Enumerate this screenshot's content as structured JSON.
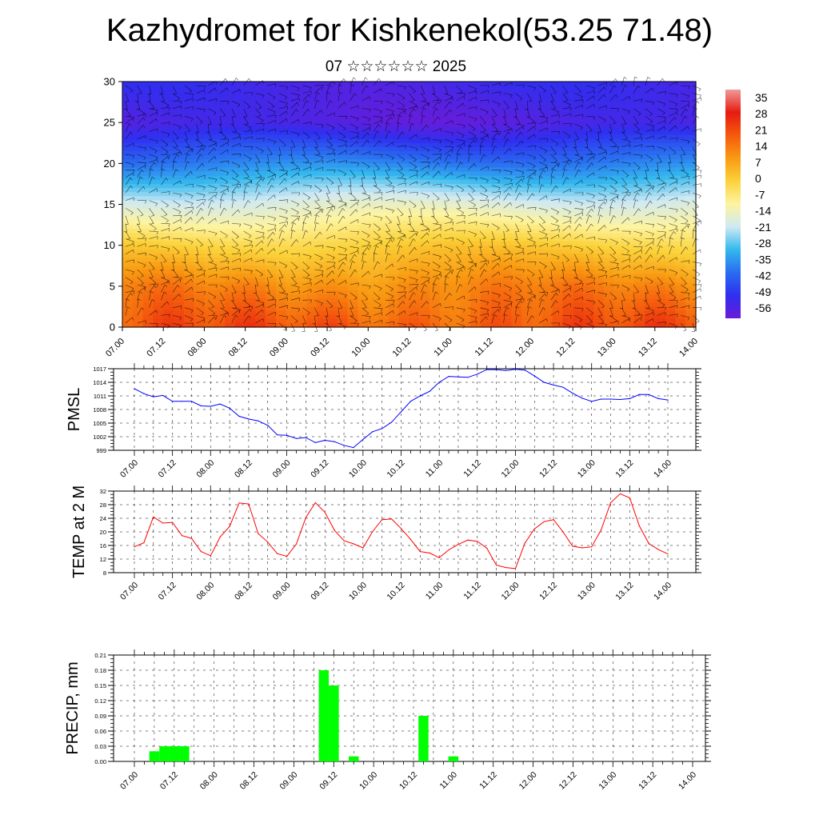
{
  "header": {
    "title": "Kazhydromet for Kishkenekol(53.25 71.48)",
    "subtitle": "07 ☆☆☆☆☆☆ 2025"
  },
  "colors": {
    "pmsl_line": "#0000ff",
    "temp_line": "#ff0000",
    "precip_bar": "#00ff00",
    "cross_section_palette": [
      "#6a1bd9",
      "#2f2ff0",
      "#2a6cf0",
      "#33b8ee",
      "#cfe9f4",
      "#fdf4a0",
      "#fbd23a",
      "#f99a12",
      "#f55a0e",
      "#e61b10",
      "#ef9a98"
    ]
  },
  "time_axis_labels": [
    "07.00",
    "07.12",
    "08.00",
    "08.12",
    "09.00",
    "09.12",
    "10.00",
    "10.12",
    "11.00",
    "11.12",
    "12.00",
    "12.12",
    "13.00",
    "13.12",
    "14.00"
  ],
  "chart_data": [
    {
      "id": "cross_section",
      "type": "heatmap",
      "description_layers": "temperature vs height with wind barbs",
      "ylim": [
        0,
        30
      ],
      "yticks": [
        0,
        5,
        10,
        15,
        20,
        25,
        30
      ],
      "profile_levels": [
        0,
        5,
        10,
        15,
        20,
        25,
        30
      ],
      "profile_values": [
        30,
        21,
        7,
        -12,
        -35,
        -56,
        -52
      ],
      "colorbar": {
        "labels": [
          "35",
          "28",
          "21",
          "14",
          "7",
          "0",
          "-7",
          "-14",
          "-21",
          "-28",
          "-35",
          "-42",
          "-49",
          "-56"
        ],
        "range": [
          -60,
          40
        ]
      }
    },
    {
      "id": "pmsl",
      "type": "line",
      "ylabel": "PMSL",
      "ylim": [
        999,
        1017
      ],
      "yticks": [
        "999",
        "1002",
        "1005",
        "1008",
        "1011",
        "1014",
        "1017"
      ],
      "x_hours": [
        0,
        3,
        6,
        9,
        12,
        15,
        18,
        21,
        24,
        27,
        30,
        33,
        36,
        39,
        42,
        45,
        48,
        51,
        54,
        57,
        60,
        63,
        66,
        69,
        72,
        75,
        78,
        81,
        84,
        87,
        90,
        93,
        96,
        99,
        102,
        105,
        108,
        111,
        114,
        117,
        120,
        123,
        126,
        129,
        132,
        135,
        138,
        141,
        144,
        147,
        150,
        153,
        156,
        159,
        162,
        165,
        168
      ],
      "values": [
        1012.6,
        1011.5,
        1010.8,
        1011.1,
        1009.8,
        1009.8,
        1009.8,
        1008.8,
        1008.7,
        1009.2,
        1008.3,
        1006.5,
        1005.9,
        1005.5,
        1004.5,
        1002.4,
        1002.3,
        1001.6,
        1001.8,
        1000.7,
        1001.2,
        1000.9,
        1000.1,
        999.6,
        1001.4,
        1003.1,
        1003.8,
        1005.2,
        1007.5,
        1009.8,
        1011.0,
        1012.0,
        1014.0,
        1015.3,
        1015.2,
        1015.1,
        1015.8,
        1016.8,
        1016.8,
        1016.6,
        1016.9,
        1016.7,
        1015.4,
        1014.0,
        1013.4,
        1012.9,
        1011.6,
        1010.5,
        1009.8,
        1010.3,
        1010.3,
        1010.2,
        1010.4,
        1011.3,
        1011.3,
        1010.4,
        1010.1
      ]
    },
    {
      "id": "temp2m",
      "type": "line",
      "ylabel": "TEMP at 2 M",
      "ylim": [
        8,
        32
      ],
      "yticks": [
        "8",
        "12",
        "16",
        "20",
        "24",
        "28",
        "32"
      ],
      "x_hours": [
        0,
        3,
        6,
        9,
        12,
        15,
        18,
        21,
        24,
        27,
        30,
        33,
        36,
        39,
        42,
        45,
        48,
        51,
        54,
        57,
        60,
        63,
        66,
        69,
        72,
        75,
        78,
        81,
        84,
        87,
        90,
        93,
        96,
        99,
        102,
        105,
        108,
        111,
        114,
        117,
        120,
        123,
        126,
        129,
        132,
        135,
        138,
        141,
        144,
        147,
        150,
        153,
        156,
        159,
        162,
        165,
        168
      ],
      "values": [
        15.6,
        16.8,
        24.4,
        22.6,
        22.8,
        18.9,
        18.1,
        14.2,
        13.0,
        18.5,
        21.6,
        28.5,
        28.2,
        19.5,
        17.0,
        13.6,
        12.8,
        16.4,
        24.2,
        28.6,
        25.8,
        20.5,
        17.4,
        16.5,
        15.3,
        20.1,
        23.6,
        23.8,
        21.0,
        17.8,
        14.2,
        13.8,
        12.4,
        14.7,
        16.3,
        17.6,
        17.2,
        15.2,
        10.2,
        9.5,
        9.2,
        16.7,
        20.9,
        23.0,
        23.6,
        20.0,
        15.8,
        15.3,
        15.6,
        20.6,
        28.6,
        31.2,
        30.0,
        21.8,
        16.6,
        14.8,
        13.5
      ]
    },
    {
      "id": "precip",
      "type": "bar",
      "ylabel": "PRECIP, mm",
      "ylim": [
        0,
        0.21
      ],
      "yticks": [
        "0.00",
        "0.03",
        "0.06",
        "0.09",
        "0.12",
        "0.15",
        "0.18",
        "0.21"
      ],
      "x_hours": [
        6,
        9,
        12,
        15,
        57,
        60,
        66,
        87,
        96
      ],
      "values": [
        0.02,
        0.03,
        0.03,
        0.03,
        0.18,
        0.15,
        0.01,
        0.09,
        0.01
      ]
    }
  ]
}
